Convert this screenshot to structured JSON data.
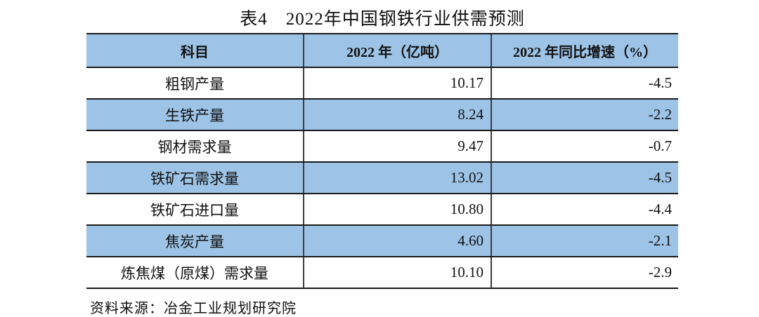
{
  "title": "表4　2022年中国钢铁行业供需预测",
  "source_note": "资料来源：冶金工业规划研究院",
  "colors": {
    "header_bg": "#9DC3E6",
    "alt_row_bg": "#9DC3E6",
    "border": "#1a1a1a",
    "text": "#111111"
  },
  "table": {
    "columns": [
      "科目",
      "2022 年（亿吨）",
      "2022 年同比增速（%）"
    ],
    "rows": [
      {
        "item": "粗钢产量",
        "value_2022": "10.17",
        "yoy_growth": "-4.5"
      },
      {
        "item": "生铁产量",
        "value_2022": "8.24",
        "yoy_growth": "-2.2"
      },
      {
        "item": "钢材需求量",
        "value_2022": "9.47",
        "yoy_growth": "-0.7"
      },
      {
        "item": "铁矿石需求量",
        "value_2022": "13.02",
        "yoy_growth": "-4.5"
      },
      {
        "item": "铁矿石进口量",
        "value_2022": "10.80",
        "yoy_growth": "-4.4"
      },
      {
        "item": "焦炭产量",
        "value_2022": "4.60",
        "yoy_growth": "-2.1"
      },
      {
        "item": "炼焦煤（原煤）需求量",
        "value_2022": "10.10",
        "yoy_growth": "-2.9"
      }
    ]
  },
  "chart_data": {
    "type": "table",
    "title": "表4　2022年中国钢铁行业供需预测",
    "categories": [
      "粗钢产量",
      "生铁产量",
      "钢材需求量",
      "铁矿石需求量",
      "铁矿石进口量",
      "焦炭产量",
      "炼焦煤（原煤）需求量"
    ],
    "series": [
      {
        "name": "2022 年（亿吨）",
        "values": [
          10.17,
          8.24,
          9.47,
          13.02,
          10.8,
          4.6,
          10.1
        ]
      },
      {
        "name": "2022 年同比增速（%）",
        "values": [
          -4.5,
          -2.2,
          -0.7,
          -4.5,
          -4.4,
          -2.1,
          -2.9
        ]
      }
    ]
  }
}
